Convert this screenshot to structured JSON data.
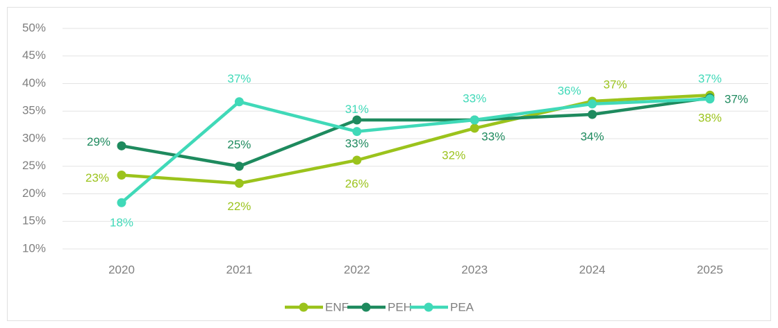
{
  "chart_data": {
    "type": "line",
    "x": [
      "2020",
      "2021",
      "2022",
      "2023",
      "2024",
      "2025"
    ],
    "series": [
      {
        "name": "ENF",
        "color": "#9bc31c",
        "values": [
          23.4,
          21.9,
          26.1,
          31.9,
          36.8,
          37.9
        ],
        "value_labels": [
          "23%",
          "22%",
          "26%",
          "32%",
          "37%",
          "38%"
        ]
      },
      {
        "name": "PEH",
        "color": "#1e8a5e",
        "values": [
          28.7,
          25,
          33.4,
          33.4,
          34.4,
          37.4
        ],
        "value_labels": [
          "29%",
          "25%",
          "33%",
          "33%",
          "34%",
          "37%"
        ]
      },
      {
        "name": "PEA",
        "color": "#40d9b8",
        "values": [
          18.4,
          36.7,
          31.3,
          33.4,
          36.3,
          37.2
        ],
        "value_labels": [
          "18%",
          "37%",
          "31%",
          "33%",
          "36%",
          "37%"
        ]
      }
    ],
    "ylim": [
      10,
      50
    ],
    "yticks": [
      {
        "value": 10,
        "label": "10%"
      },
      {
        "value": 15,
        "label": "15%"
      },
      {
        "value": 20,
        "label": "20%"
      },
      {
        "value": 25,
        "label": "25%"
      },
      {
        "value": 30,
        "label": "30%"
      },
      {
        "value": 35,
        "label": "35%"
      },
      {
        "value": 40,
        "label": "40%"
      },
      {
        "value": 45,
        "label": "45%"
      },
      {
        "value": 50,
        "label": "50%"
      }
    ],
    "grid": true,
    "legend": "bottom"
  }
}
